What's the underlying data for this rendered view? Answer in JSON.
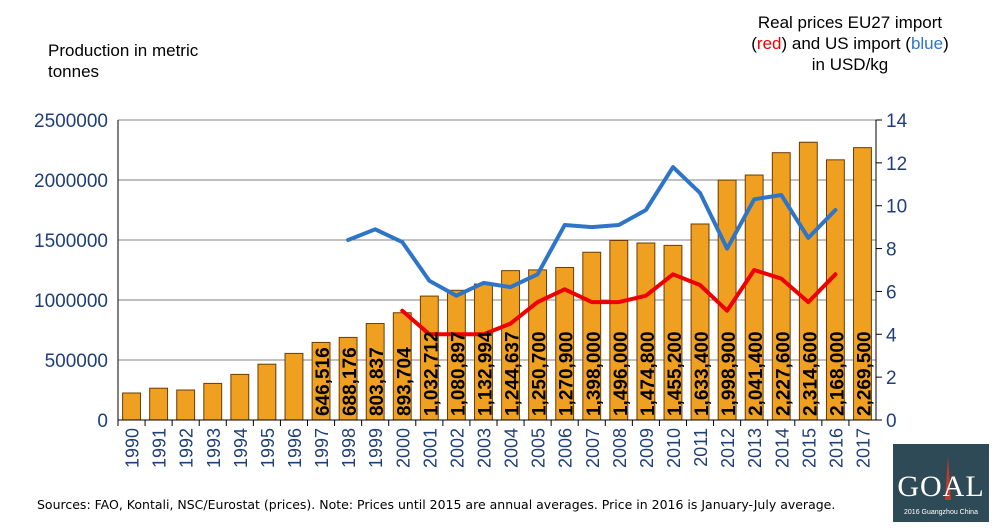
{
  "chart_data": {
    "type": "bar",
    "left_axis_title": "Production in metric tonnes",
    "right_axis_title_parts": [
      "Real prices EU27 import (",
      "red",
      ") and US import (",
      "blue",
      ") in USD/kg"
    ],
    "categories": [
      "1990",
      "1991",
      "1992",
      "1993",
      "1994",
      "1995",
      "1996",
      "1997",
      "1998",
      "1999",
      "2000",
      "2001",
      "2002",
      "2003",
      "2004",
      "2005",
      "2006",
      "2007",
      "2008",
      "2009",
      "2010",
      "2011",
      "2012",
      "2013",
      "2014",
      "2015",
      "2016",
      "2017"
    ],
    "series": [
      {
        "name": "Production",
        "axis": "left",
        "type": "bar",
        "values": [
          225000,
          265000,
          250000,
          305000,
          380000,
          465000,
          555000,
          646516,
          688176,
          803837,
          893704,
          1032712,
          1080897,
          1132994,
          1244637,
          1250700,
          1270900,
          1398000,
          1496000,
          1474800,
          1455200,
          1633400,
          1998900,
          2041400,
          2227600,
          2314600,
          2168000,
          2269500
        ],
        "labels": [
          "",
          "",
          "",
          "",
          "",
          "",
          "",
          "646,516",
          "688,176",
          "803,837",
          "893,704",
          "1,032,712",
          "1,080,897",
          "1,132,994",
          "1,244,637",
          "1,250,700",
          "1,270,900",
          "1,398,000",
          "1,496,000",
          "1,474,800",
          "1,455,200",
          "1,633,400",
          "1,998,900",
          "2,041,400",
          "2,227,600",
          "2,314,600",
          "2,168,000",
          "2,269,500"
        ]
      },
      {
        "name": "US import price",
        "axis": "right",
        "type": "line",
        "color": "#2e75c8",
        "values": [
          null,
          null,
          null,
          null,
          null,
          null,
          null,
          null,
          8.4,
          8.9,
          8.3,
          6.5,
          5.8,
          6.4,
          6.2,
          6.8,
          9.1,
          9.0,
          9.1,
          9.8,
          11.8,
          10.6,
          8.0,
          10.3,
          10.5,
          8.5,
          9.8,
          null
        ]
      },
      {
        "name": "EU27 import price",
        "axis": "right",
        "type": "line",
        "color": "#ee0000",
        "values": [
          null,
          null,
          null,
          null,
          null,
          null,
          null,
          null,
          null,
          null,
          5.1,
          4.0,
          4.0,
          4.0,
          4.5,
          5.5,
          6.1,
          5.5,
          5.5,
          5.8,
          6.8,
          6.3,
          5.1,
          7.0,
          6.6,
          5.5,
          6.8,
          null
        ]
      }
    ],
    "left_axis": {
      "min": 0,
      "max": 2500000,
      "ticks": [
        "0",
        "500000",
        "1000000",
        "1500000",
        "2000000",
        "2500000"
      ]
    },
    "right_axis": {
      "min": 0,
      "max": 14,
      "ticks": [
        "0",
        "2",
        "4",
        "6",
        "8",
        "10",
        "12",
        "14"
      ]
    },
    "grid": true,
    "colors": {
      "bar_fill": "#f0a020",
      "bar_stroke": "#6b3c00",
      "axis_text": "#1f3f7a",
      "grid": "#808080"
    }
  },
  "footer": {
    "source_parts": [
      "Sources: FAO, ",
      "Kontali",
      ", NSC/Eurostat (prices). Note: Prices  until 2015 are annual averages. Price in 2016 is January-July average."
    ]
  },
  "logo": {
    "text": "GOAL",
    "subtitle": "2016 Guangzhou China",
    "background": "#2f4a57"
  }
}
